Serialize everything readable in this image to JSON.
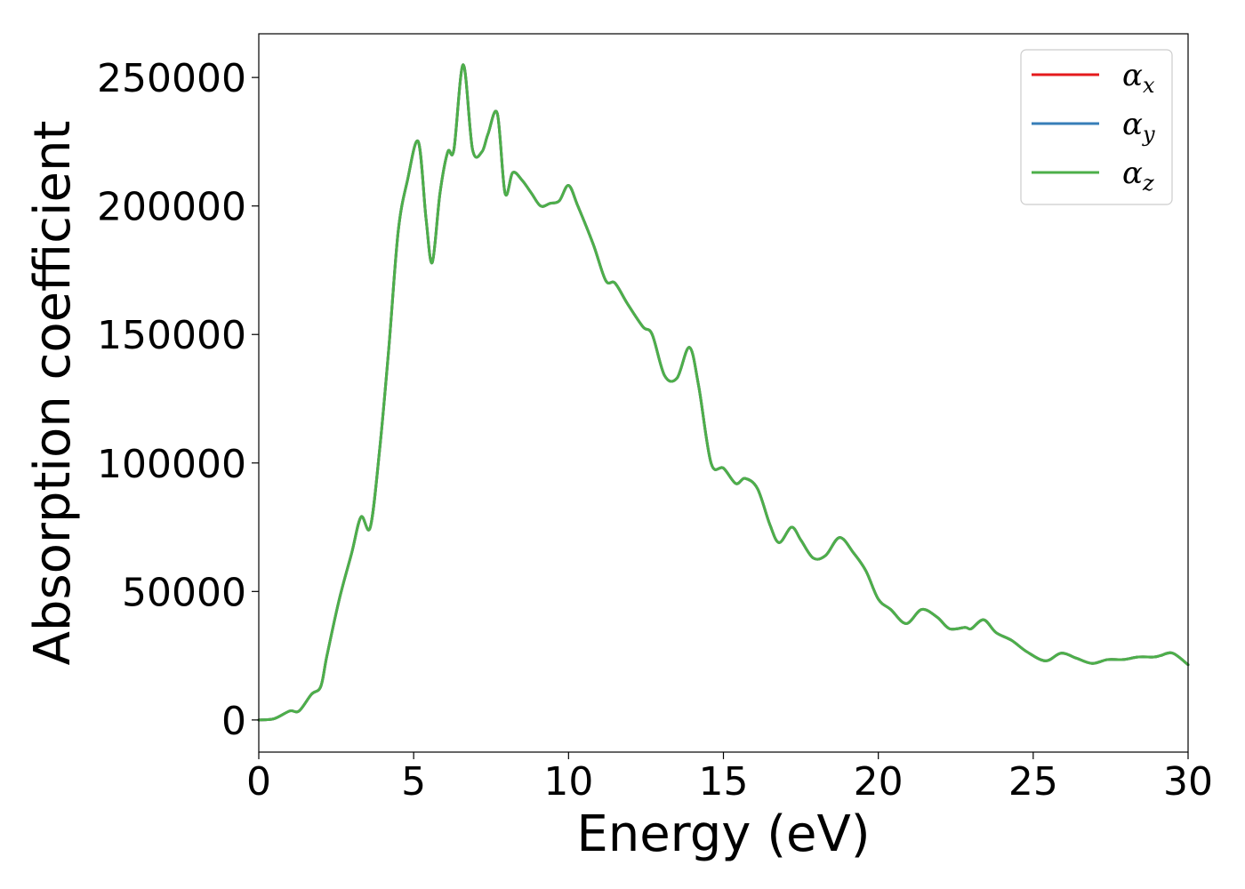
{
  "chart_data": {
    "type": "line",
    "xlabel": "Energy (eV)",
    "ylabel": "Absorption coefficient",
    "xlim": [
      0,
      30
    ],
    "ylim": [
      -12500,
      267000
    ],
    "x_ticks": [
      0,
      5,
      10,
      15,
      20,
      25,
      30
    ],
    "x_tick_labels": [
      "0",
      "5",
      "10",
      "15",
      "20",
      "25",
      "30"
    ],
    "y_ticks": [
      0,
      50000,
      100000,
      150000,
      200000,
      250000
    ],
    "y_tick_labels": [
      "0",
      "50000",
      "100000",
      "150000",
      "200000",
      "250000"
    ],
    "grid": false,
    "legend": "top-right",
    "x": [
      0,
      0.5,
      1.0,
      1.3,
      1.7,
      2.0,
      2.2,
      2.6,
      3.0,
      3.3,
      3.6,
      3.9,
      4.2,
      4.5,
      4.8,
      5.15,
      5.4,
      5.6,
      5.85,
      6.1,
      6.3,
      6.6,
      6.9,
      7.2,
      7.4,
      7.7,
      7.95,
      8.2,
      8.5,
      8.8,
      9.1,
      9.4,
      9.7,
      10.0,
      10.3,
      10.8,
      11.2,
      11.5,
      11.9,
      12.4,
      12.7,
      13.1,
      13.5,
      13.9,
      14.2,
      14.6,
      15.0,
      15.4,
      15.7,
      16.1,
      16.5,
      16.8,
      17.2,
      17.5,
      17.9,
      18.3,
      18.75,
      19.2,
      19.6,
      20.0,
      20.4,
      20.9,
      21.4,
      21.9,
      22.3,
      22.8,
      23.0,
      23.4,
      23.8,
      24.3,
      24.8,
      25.4,
      25.9,
      26.4,
      26.9,
      27.4,
      27.9,
      28.4,
      28.9,
      29.1,
      29.5,
      30.0
    ],
    "series": [
      {
        "name": "αx",
        "color": "#e41a1c",
        "values": [
          0,
          500,
          3500,
          3500,
          10000,
          13000,
          25000,
          47000,
          65000,
          79000,
          75000,
          105000,
          145000,
          190000,
          210000,
          225000,
          195000,
          178000,
          205000,
          221000,
          222000,
          255000,
          222000,
          221000,
          228000,
          236000,
          205000,
          213000,
          210000,
          205000,
          200000,
          201000,
          202000,
          208000,
          200000,
          185000,
          171000,
          170000,
          162000,
          153000,
          150000,
          134000,
          133000,
          145000,
          130000,
          100000,
          98000,
          92000,
          94000,
          90000,
          76000,
          69000,
          75000,
          70000,
          63000,
          64000,
          71000,
          65000,
          58000,
          47000,
          43000,
          37500,
          43000,
          40000,
          35500,
          36000,
          35500,
          39000,
          34000,
          31000,
          26500,
          23000,
          26000,
          24000,
          22000,
          23500,
          23500,
          24500,
          24500,
          25000,
          26000,
          21500
        ]
      },
      {
        "name": "αy",
        "color": "#377eb8",
        "values": [
          0,
          500,
          3500,
          3500,
          10000,
          13000,
          25000,
          47000,
          65000,
          79000,
          75000,
          105000,
          145000,
          190000,
          210000,
          225000,
          195000,
          178000,
          205000,
          221000,
          222000,
          255000,
          222000,
          221000,
          228000,
          236000,
          205000,
          213000,
          210000,
          205000,
          200000,
          201000,
          202000,
          208000,
          200000,
          185000,
          171000,
          170000,
          162000,
          153000,
          150000,
          134000,
          133000,
          145000,
          130000,
          100000,
          98000,
          92000,
          94000,
          90000,
          76000,
          69000,
          75000,
          70000,
          63000,
          64000,
          71000,
          65000,
          58000,
          47000,
          43000,
          37500,
          43000,
          40000,
          35500,
          36000,
          35500,
          39000,
          34000,
          31000,
          26500,
          23000,
          26000,
          24000,
          22000,
          23500,
          23500,
          24500,
          24500,
          25000,
          26000,
          21500
        ]
      },
      {
        "name": "αz",
        "color": "#4daf4a",
        "values": [
          0,
          500,
          3500,
          3500,
          10000,
          13000,
          25000,
          47000,
          65000,
          79000,
          75000,
          105000,
          145000,
          190000,
          210000,
          225000,
          195000,
          178000,
          205000,
          221000,
          222000,
          255000,
          222000,
          221000,
          228000,
          236000,
          205000,
          213000,
          210000,
          205000,
          200000,
          201000,
          202000,
          208000,
          200000,
          185000,
          171000,
          170000,
          162000,
          153000,
          150000,
          134000,
          133000,
          145000,
          130000,
          100000,
          98000,
          92000,
          94000,
          90000,
          76000,
          69000,
          75000,
          70000,
          63000,
          64000,
          71000,
          65000,
          58000,
          47000,
          43000,
          37500,
          43000,
          40000,
          35500,
          36000,
          35500,
          39000,
          34000,
          31000,
          26500,
          23000,
          26000,
          24000,
          22000,
          23500,
          23500,
          24500,
          24500,
          25000,
          26000,
          21500
        ]
      }
    ],
    "legend_entries": [
      {
        "symbol": "α",
        "sub": "x",
        "color": "#e41a1c"
      },
      {
        "symbol": "α",
        "sub": "y",
        "color": "#377eb8"
      },
      {
        "symbol": "α",
        "sub": "z",
        "color": "#4daf4a"
      }
    ]
  }
}
